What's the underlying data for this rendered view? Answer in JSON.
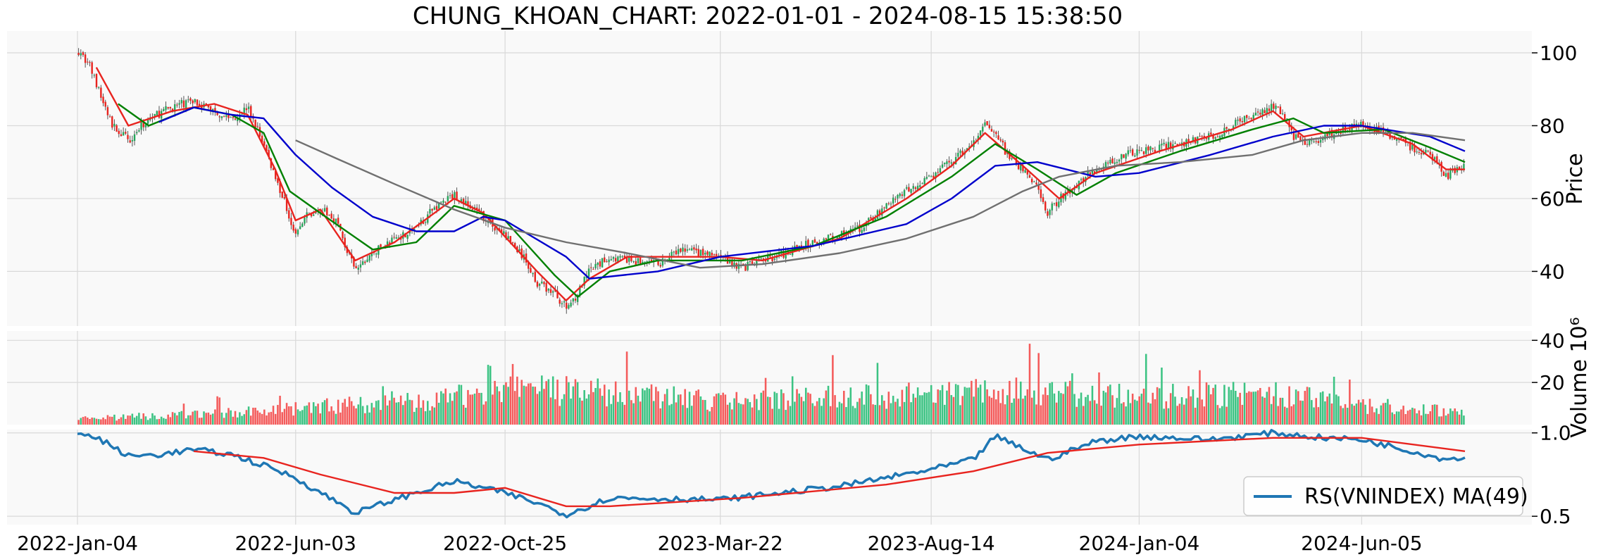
{
  "chart_data": [
    {
      "type": "candlestick",
      "title": "CHUNG_KHOAN_CHART: 2022-01-01 - 2024-08-15 15:38:50",
      "ylabel": "Price",
      "ylim": [
        25,
        106
      ],
      "yticks": [
        40,
        60,
        80,
        100
      ],
      "x_range": [
        "2022-01-04",
        "2024-08-15"
      ],
      "xticks": [
        "2022-Jan-04",
        "2022-Jun-03",
        "2022-Oct-25",
        "2023-Mar-22",
        "2023-Aug-14",
        "2024-Jan-04",
        "2024-Jun-05"
      ],
      "grid": true,
      "up_color": "#26a65b",
      "down_color": "#e8241f",
      "price_path": [
        [
          "2022-01-04",
          101
        ],
        [
          "2022-01-12",
          97
        ],
        [
          "2022-01-20",
          88
        ],
        [
          "2022-01-28",
          80
        ],
        [
          "2022-02-08",
          76
        ],
        [
          "2022-02-22",
          82
        ],
        [
          "2022-03-10",
          85
        ],
        [
          "2022-03-25",
          87
        ],
        [
          "2022-04-08",
          84
        ],
        [
          "2022-04-20",
          82
        ],
        [
          "2022-05-01",
          85
        ],
        [
          "2022-05-12",
          75
        ],
        [
          "2022-05-20",
          66
        ],
        [
          "2022-05-30",
          55
        ],
        [
          "2022-06-03",
          50
        ],
        [
          "2022-06-10",
          55
        ],
        [
          "2022-06-20",
          57
        ],
        [
          "2022-07-01",
          54
        ],
        [
          "2022-07-08",
          46
        ],
        [
          "2022-07-14",
          40
        ],
        [
          "2022-07-26",
          45
        ],
        [
          "2022-08-10",
          49
        ],
        [
          "2022-08-25",
          52
        ],
        [
          "2022-09-08",
          58
        ],
        [
          "2022-09-20",
          61
        ],
        [
          "2022-10-03",
          57
        ],
        [
          "2022-10-10",
          55
        ],
        [
          "2022-10-25",
          50
        ],
        [
          "2022-11-08",
          43
        ],
        [
          "2022-11-16",
          37
        ],
        [
          "2022-11-28",
          34
        ],
        [
          "2022-12-06",
          30
        ],
        [
          "2022-12-14",
          34
        ],
        [
          "2022-12-22",
          40
        ],
        [
          "2023-01-05",
          44
        ],
        [
          "2023-01-17",
          43
        ],
        [
          "2023-02-07",
          42
        ],
        [
          "2023-02-24",
          46
        ],
        [
          "2023-03-08",
          45
        ],
        [
          "2023-03-22",
          44
        ],
        [
          "2023-04-06",
          41
        ],
        [
          "2023-04-20",
          43
        ],
        [
          "2023-05-05",
          45
        ],
        [
          "2023-05-25",
          48
        ],
        [
          "2023-06-12",
          50
        ],
        [
          "2023-06-28",
          52
        ],
        [
          "2023-07-14",
          58
        ],
        [
          "2023-07-28",
          62
        ],
        [
          "2023-08-14",
          66
        ],
        [
          "2023-08-28",
          70
        ],
        [
          "2023-09-12",
          75
        ],
        [
          "2023-09-20",
          80
        ],
        [
          "2023-09-27",
          79
        ],
        [
          "2023-10-05",
          72
        ],
        [
          "2023-10-16",
          68
        ],
        [
          "2023-10-26",
          63
        ],
        [
          "2023-11-02",
          56
        ],
        [
          "2023-11-10",
          60
        ],
        [
          "2023-11-22",
          64
        ],
        [
          "2023-12-05",
          68
        ],
        [
          "2023-12-19",
          71
        ],
        [
          "2024-01-04",
          73
        ],
        [
          "2024-01-18",
          74
        ],
        [
          "2024-02-01",
          75
        ],
        [
          "2024-02-22",
          77
        ],
        [
          "2024-03-08",
          80
        ],
        [
          "2024-03-22",
          83
        ],
        [
          "2024-04-05",
          85
        ],
        [
          "2024-04-12",
          84
        ],
        [
          "2024-04-19",
          77
        ],
        [
          "2024-04-26",
          75
        ],
        [
          "2024-05-10",
          77
        ],
        [
          "2024-05-24",
          79
        ],
        [
          "2024-06-05",
          80
        ],
        [
          "2024-06-20",
          78
        ],
        [
          "2024-06-28",
          76
        ],
        [
          "2024-07-10",
          74
        ],
        [
          "2024-07-22",
          72
        ],
        [
          "2024-08-02",
          66
        ],
        [
          "2024-08-08",
          68
        ],
        [
          "2024-08-15",
          69
        ]
      ],
      "moving_averages": [
        {
          "color": "#e8241f",
          "path": [
            [
              "2022-01-17",
              96
            ],
            [
              "2022-02-08",
              80
            ],
            [
              "2022-03-10",
              84
            ],
            [
              "2022-04-08",
              86
            ],
            [
              "2022-05-01",
              83
            ],
            [
              "2022-05-20",
              68
            ],
            [
              "2022-06-03",
              54
            ],
            [
              "2022-06-20",
              57
            ],
            [
              "2022-07-14",
              43
            ],
            [
              "2022-08-10",
              48
            ],
            [
              "2022-09-20",
              60
            ],
            [
              "2022-10-10",
              56
            ],
            [
              "2022-11-16",
              40
            ],
            [
              "2022-12-06",
              32
            ],
            [
              "2022-12-22",
              38
            ],
            [
              "2023-01-17",
              44
            ],
            [
              "2023-03-22",
              44
            ],
            [
              "2023-04-20",
              43
            ],
            [
              "2023-06-12",
              49
            ],
            [
              "2023-07-28",
              60
            ],
            [
              "2023-08-28",
              69
            ],
            [
              "2023-09-20",
              78
            ],
            [
              "2023-10-16",
              69
            ],
            [
              "2023-11-10",
              60
            ],
            [
              "2023-12-05",
              67
            ],
            [
              "2024-01-18",
              73
            ],
            [
              "2024-03-08",
              79
            ],
            [
              "2024-04-05",
              84
            ],
            [
              "2024-04-26",
              77
            ],
            [
              "2024-06-05",
              80
            ],
            [
              "2024-07-10",
              75
            ],
            [
              "2024-08-02",
              68
            ],
            [
              "2024-08-15",
              68
            ]
          ]
        },
        {
          "color": "#008000",
          "path": [
            [
              "2022-02-01",
              86
            ],
            [
              "2022-02-22",
              80
            ],
            [
              "2022-03-25",
              85
            ],
            [
              "2022-04-20",
              83
            ],
            [
              "2022-05-12",
              78
            ],
            [
              "2022-05-30",
              62
            ],
            [
              "2022-06-20",
              56
            ],
            [
              "2022-07-26",
              46
            ],
            [
              "2022-08-25",
              48
            ],
            [
              "2022-09-20",
              58
            ],
            [
              "2022-10-25",
              54
            ],
            [
              "2022-11-28",
              39
            ],
            [
              "2022-12-14",
              33
            ],
            [
              "2023-01-05",
              40
            ],
            [
              "2023-02-07",
              43
            ],
            [
              "2023-04-06",
              43
            ],
            [
              "2023-05-25",
              47
            ],
            [
              "2023-07-14",
              55
            ],
            [
              "2023-08-28",
              66
            ],
            [
              "2023-09-27",
              75
            ],
            [
              "2023-10-26",
              68
            ],
            [
              "2023-11-22",
              61
            ],
            [
              "2023-12-19",
              67
            ],
            [
              "2024-02-01",
              73
            ],
            [
              "2024-03-22",
              79
            ],
            [
              "2024-04-19",
              82
            ],
            [
              "2024-05-10",
              78
            ],
            [
              "2024-06-20",
              79
            ],
            [
              "2024-07-22",
              74
            ],
            [
              "2024-08-15",
              70
            ]
          ]
        },
        {
          "color": "#0000cc",
          "path": [
            [
              "2022-03-01",
              81
            ],
            [
              "2022-03-25",
              85
            ],
            [
              "2022-04-20",
              83
            ],
            [
              "2022-05-12",
              82
            ],
            [
              "2022-06-03",
              72
            ],
            [
              "2022-06-28",
              63
            ],
            [
              "2022-07-26",
              55
            ],
            [
              "2022-08-25",
              51
            ],
            [
              "2022-09-20",
              51
            ],
            [
              "2022-10-10",
              55
            ],
            [
              "2022-10-25",
              54
            ],
            [
              "2022-12-06",
              44
            ],
            [
              "2022-12-22",
              38
            ],
            [
              "2023-02-07",
              40
            ],
            [
              "2023-03-22",
              44
            ],
            [
              "2023-05-25",
              47
            ],
            [
              "2023-07-28",
              53
            ],
            [
              "2023-08-28",
              60
            ],
            [
              "2023-09-27",
              69
            ],
            [
              "2023-10-26",
              70
            ],
            [
              "2023-12-05",
              66
            ],
            [
              "2024-01-04",
              67
            ],
            [
              "2024-02-22",
              72
            ],
            [
              "2024-04-05",
              77
            ],
            [
              "2024-05-10",
              80
            ],
            [
              "2024-06-05",
              80
            ],
            [
              "2024-07-22",
              77
            ],
            [
              "2024-08-15",
              73
            ]
          ]
        },
        {
          "color": "#707070",
          "path": [
            [
              "2022-06-03",
              76
            ],
            [
              "2022-07-01",
              71
            ],
            [
              "2022-08-10",
              64
            ],
            [
              "2022-09-20",
              57
            ],
            [
              "2022-10-25",
              52
            ],
            [
              "2022-12-06",
              48
            ],
            [
              "2023-01-17",
              45
            ],
            [
              "2023-03-08",
              41
            ],
            [
              "2023-04-20",
              42
            ],
            [
              "2023-06-12",
              45
            ],
            [
              "2023-07-28",
              49
            ],
            [
              "2023-09-12",
              55
            ],
            [
              "2023-10-16",
              62
            ],
            [
              "2023-11-10",
              66
            ],
            [
              "2023-12-19",
              69
            ],
            [
              "2024-02-01",
              70
            ],
            [
              "2024-03-22",
              72
            ],
            [
              "2024-04-26",
              76
            ],
            [
              "2024-06-05",
              78
            ],
            [
              "2024-07-10",
              78
            ],
            [
              "2024-08-15",
              76
            ]
          ]
        }
      ]
    },
    {
      "type": "bar",
      "ylabel": "Volume  10⁶",
      "ylim": [
        0,
        40
      ],
      "yticks": [
        20,
        40
      ],
      "up_color": "#3cc383",
      "down_color": "#f45b5b",
      "volume_profile": [
        [
          "2022-01-04",
          3
        ],
        [
          "2022-03-01",
          4
        ],
        [
          "2022-05-01",
          6
        ],
        [
          "2022-07-01",
          9
        ],
        [
          "2022-09-01",
          11
        ],
        [
          "2022-11-01",
          17
        ],
        [
          "2023-01-05",
          15
        ],
        [
          "2023-03-22",
          11
        ],
        [
          "2023-06-01",
          13
        ],
        [
          "2023-08-14",
          14
        ],
        [
          "2023-10-01",
          16
        ],
        [
          "2024-01-04",
          13
        ],
        [
          "2024-04-01",
          15
        ],
        [
          "2024-06-05",
          9
        ],
        [
          "2024-08-15",
          6
        ]
      ]
    },
    {
      "type": "line",
      "ylim": [
        0.45,
        1.02
      ],
      "yticks": [
        0.5,
        1.0
      ],
      "legend": "lower-right",
      "series": [
        {
          "name": "RS(VNINDEX) MA(49)",
          "color": "#1f77b4",
          "path": [
            [
              "2022-01-04",
              1.0
            ],
            [
              "2022-01-20",
              0.96
            ],
            [
              "2022-02-08",
              0.86
            ],
            [
              "2022-03-01",
              0.87
            ],
            [
              "2022-03-25",
              0.9
            ],
            [
              "2022-04-20",
              0.87
            ],
            [
              "2022-05-20",
              0.78
            ],
            [
              "2022-06-03",
              0.73
            ],
            [
              "2022-06-20",
              0.64
            ],
            [
              "2022-07-01",
              0.59
            ],
            [
              "2022-07-14",
              0.52
            ],
            [
              "2022-08-10",
              0.6
            ],
            [
              "2022-09-20",
              0.71
            ],
            [
              "2022-10-25",
              0.64
            ],
            [
              "2022-11-16",
              0.58
            ],
            [
              "2022-12-06",
              0.51
            ],
            [
              "2023-01-05",
              0.61
            ],
            [
              "2023-03-22",
              0.6
            ],
            [
              "2023-06-12",
              0.68
            ],
            [
              "2023-08-14",
              0.78
            ],
            [
              "2023-09-12",
              0.84
            ],
            [
              "2023-09-27",
              0.98
            ],
            [
              "2023-11-02",
              0.84
            ],
            [
              "2023-12-05",
              0.95
            ],
            [
              "2024-01-04",
              0.98
            ],
            [
              "2024-02-22",
              0.96
            ],
            [
              "2024-04-05",
              1.0
            ],
            [
              "2024-05-10",
              0.97
            ],
            [
              "2024-06-05",
              0.96
            ],
            [
              "2024-07-10",
              0.89
            ],
            [
              "2024-08-02",
              0.84
            ],
            [
              "2024-08-15",
              0.86
            ]
          ]
        },
        {
          "name": "",
          "color": "#e8241f",
          "path": [
            [
              "2022-03-25",
              0.89
            ],
            [
              "2022-05-12",
              0.85
            ],
            [
              "2022-06-20",
              0.75
            ],
            [
              "2022-08-10",
              0.64
            ],
            [
              "2022-09-20",
              0.64
            ],
            [
              "2022-10-25",
              0.67
            ],
            [
              "2022-12-06",
              0.56
            ],
            [
              "2023-01-05",
              0.56
            ],
            [
              "2023-04-06",
              0.61
            ],
            [
              "2023-07-14",
              0.69
            ],
            [
              "2023-09-12",
              0.77
            ],
            [
              "2023-11-02",
              0.88
            ],
            [
              "2024-01-04",
              0.93
            ],
            [
              "2024-04-05",
              0.97
            ],
            [
              "2024-06-05",
              0.97
            ],
            [
              "2024-08-15",
              0.89
            ]
          ]
        }
      ]
    }
  ]
}
